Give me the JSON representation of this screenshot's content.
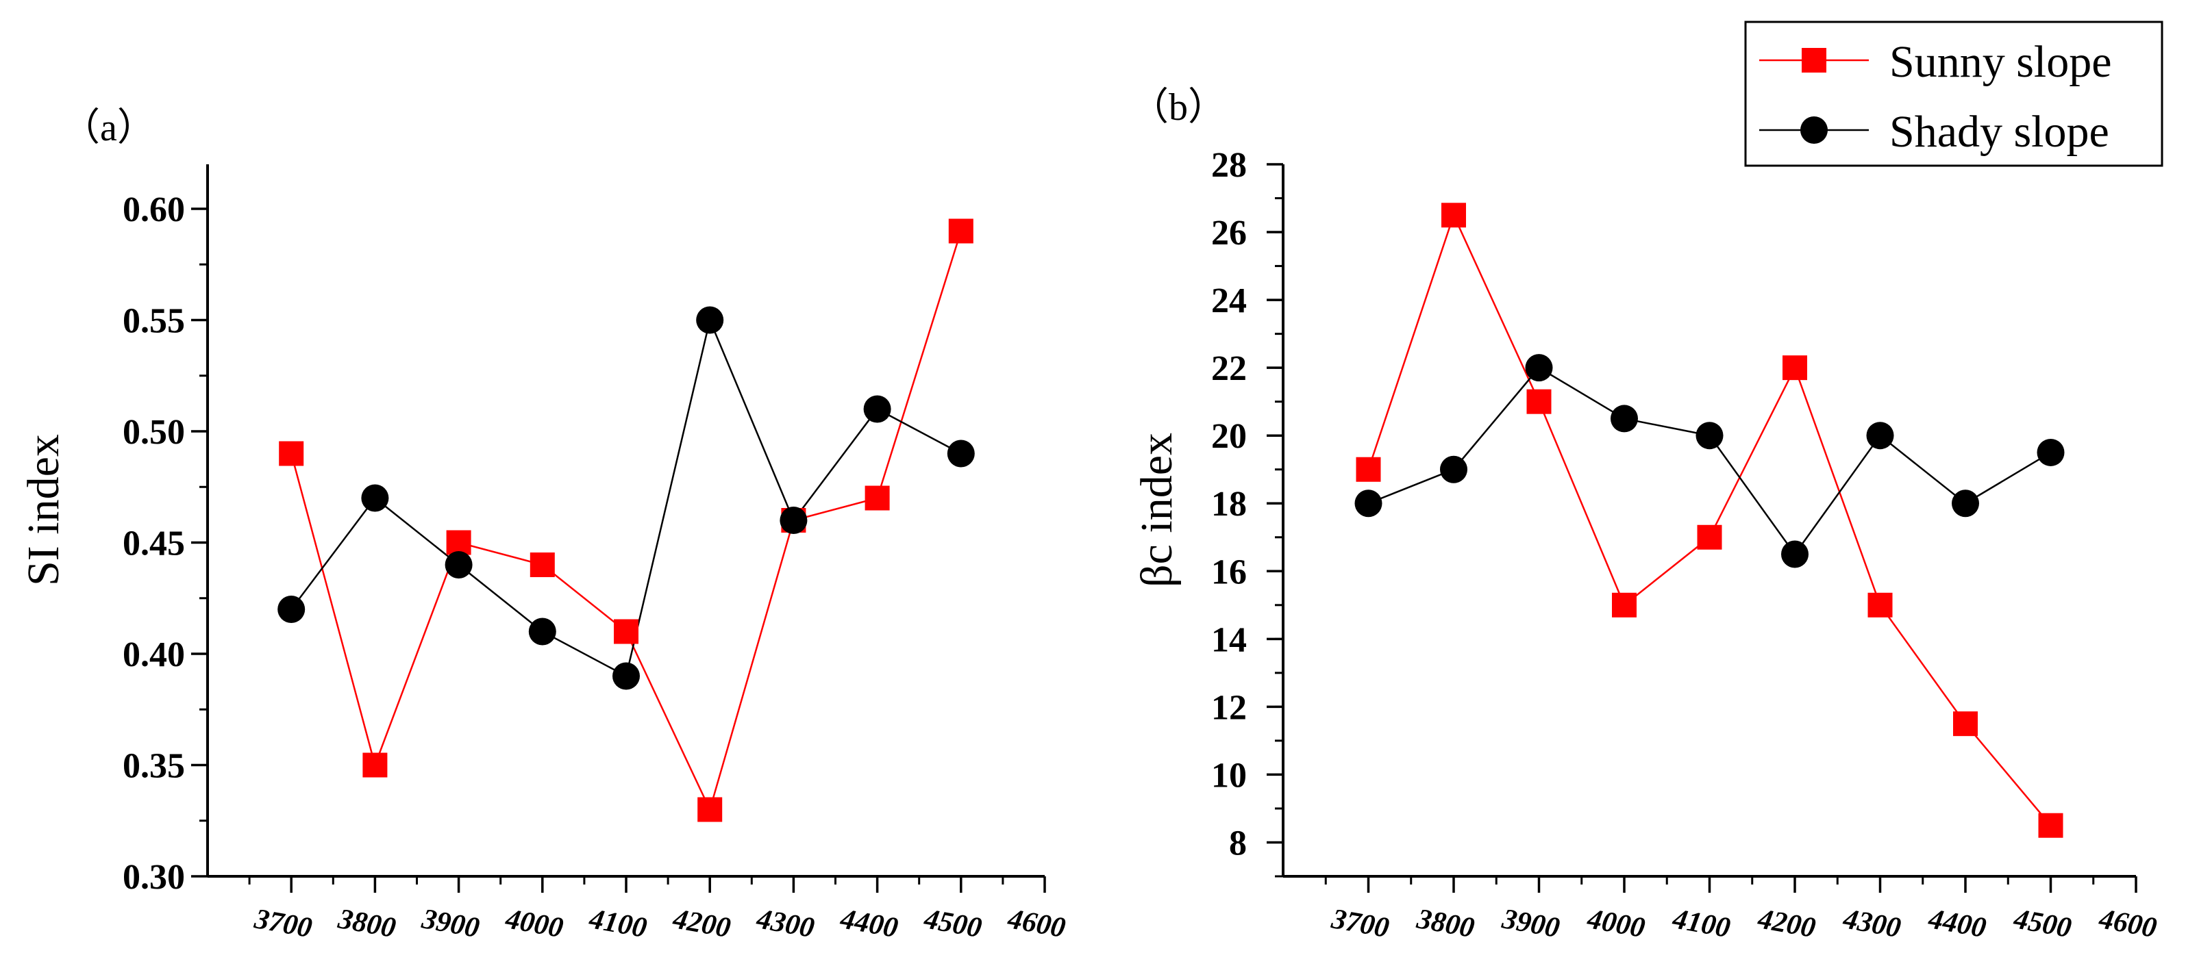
{
  "chart_data": [
    {
      "type": "line",
      "panel_label": "（a）",
      "title": "",
      "xlabel": "",
      "ylabel": "SI index",
      "ylim": [
        0.3,
        0.62
      ],
      "xlim": [
        3600,
        4600
      ],
      "yticks": [
        "0.30",
        "0.35",
        "0.40",
        "0.45",
        "0.50",
        "0.55",
        "0.60"
      ],
      "xticks": [
        "3700",
        "3800",
        "3900",
        "4000",
        "4100",
        "4200",
        "4300",
        "4400",
        "4500",
        "4600"
      ],
      "x": [
        3700,
        3800,
        3900,
        4000,
        4100,
        4200,
        4300,
        4400,
        4500
      ],
      "series": [
        {
          "name": "Sunny slope",
          "color": "#ff0000",
          "marker": "square",
          "values": [
            0.49,
            0.35,
            0.45,
            0.44,
            0.41,
            0.33,
            0.46,
            0.47,
            0.59
          ]
        },
        {
          "name": "Shady slope",
          "color": "#000000",
          "marker": "circle",
          "values": [
            0.42,
            0.47,
            0.44,
            0.41,
            0.39,
            0.55,
            0.46,
            0.51,
            0.49
          ]
        }
      ]
    },
    {
      "type": "line",
      "panel_label": "（b）",
      "title": "",
      "xlabel": "",
      "ylabel": "βc index",
      "ylim": [
        7,
        28
      ],
      "xlim": [
        3600,
        4600
      ],
      "yticks": [
        "8",
        "10",
        "12",
        "14",
        "16",
        "18",
        "20",
        "22",
        "24",
        "26",
        "28"
      ],
      "xticks": [
        "3700",
        "3800",
        "3900",
        "4000",
        "4100",
        "4200",
        "4300",
        "4400",
        "4500",
        "4600"
      ],
      "x": [
        3700,
        3800,
        3900,
        4000,
        4100,
        4200,
        4300,
        4400,
        4500
      ],
      "series": [
        {
          "name": "Sunny slope",
          "color": "#ff0000",
          "marker": "square",
          "values": [
            19,
            26.5,
            21,
            15,
            17,
            22,
            15,
            11.5,
            8.5
          ]
        },
        {
          "name": "Shady slope",
          "color": "#000000",
          "marker": "circle",
          "values": [
            18,
            19,
            22,
            20.5,
            20,
            16.5,
            20,
            18,
            19.5
          ]
        }
      ]
    }
  ],
  "legend": {
    "position": "top-right",
    "entries": [
      {
        "label": "Sunny slope",
        "color": "#ff0000",
        "marker": "square"
      },
      {
        "label": "Shady slope",
        "color": "#000000",
        "marker": "circle"
      }
    ]
  }
}
